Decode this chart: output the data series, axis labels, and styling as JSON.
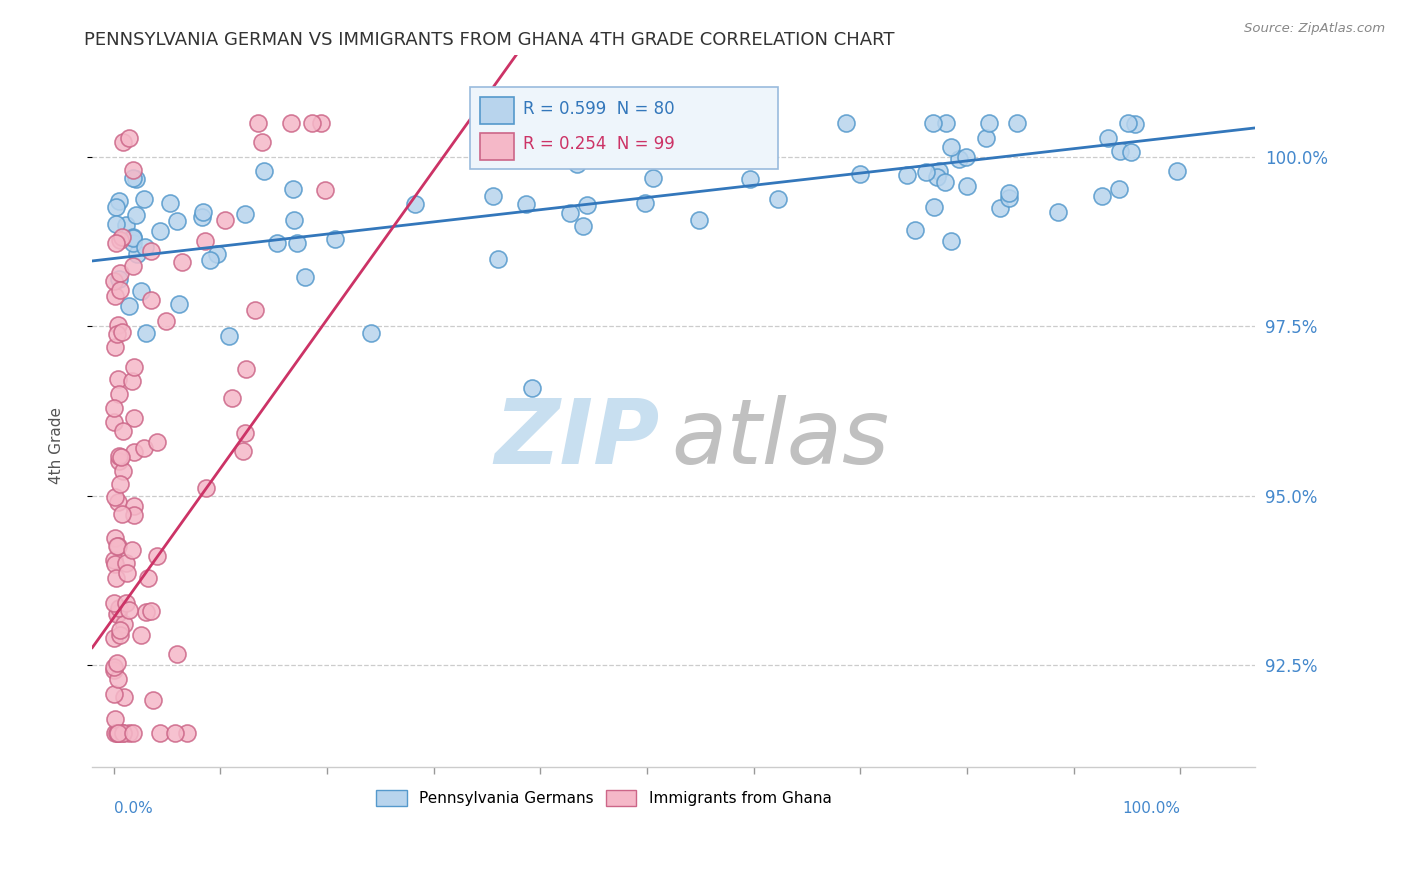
{
  "title": "PENNSYLVANIA GERMAN VS IMMIGRANTS FROM GHANA 4TH GRADE CORRELATION CHART",
  "source_text": "Source: ZipAtlas.com",
  "ylabel": "4th Grade",
  "yaxis_ticks": [
    92.5,
    95.0,
    97.5,
    100.0
  ],
  "yaxis_labels": [
    "92.5%",
    "95.0%",
    "97.5%",
    "100.0%"
  ],
  "ylim": [
    91.0,
    101.5
  ],
  "xlim": [
    -2.0,
    107.0
  ],
  "legend_blue_R": 0.599,
  "legend_blue_N": 80,
  "legend_pink_R": 0.254,
  "legend_pink_N": 99,
  "scatter_blue_face": "#b8d4ed",
  "scatter_blue_edge": "#5599cc",
  "scatter_pink_face": "#f5b8c8",
  "scatter_pink_edge": "#cc6688",
  "trendline_blue": "#3377bb",
  "trendline_pink": "#cc3366",
  "watermark_zip_color": "#c8dff0",
  "watermark_atlas_color": "#c0c0c0",
  "bg_color": "#ffffff",
  "title_color": "#333333",
  "source_color": "#888888",
  "axis_tick_color": "#4488cc",
  "ylabel_color": "#555555",
  "grid_color": "#cccccc",
  "legend_box_face": "#eef5fb",
  "legend_box_edge": "#99bbdd"
}
